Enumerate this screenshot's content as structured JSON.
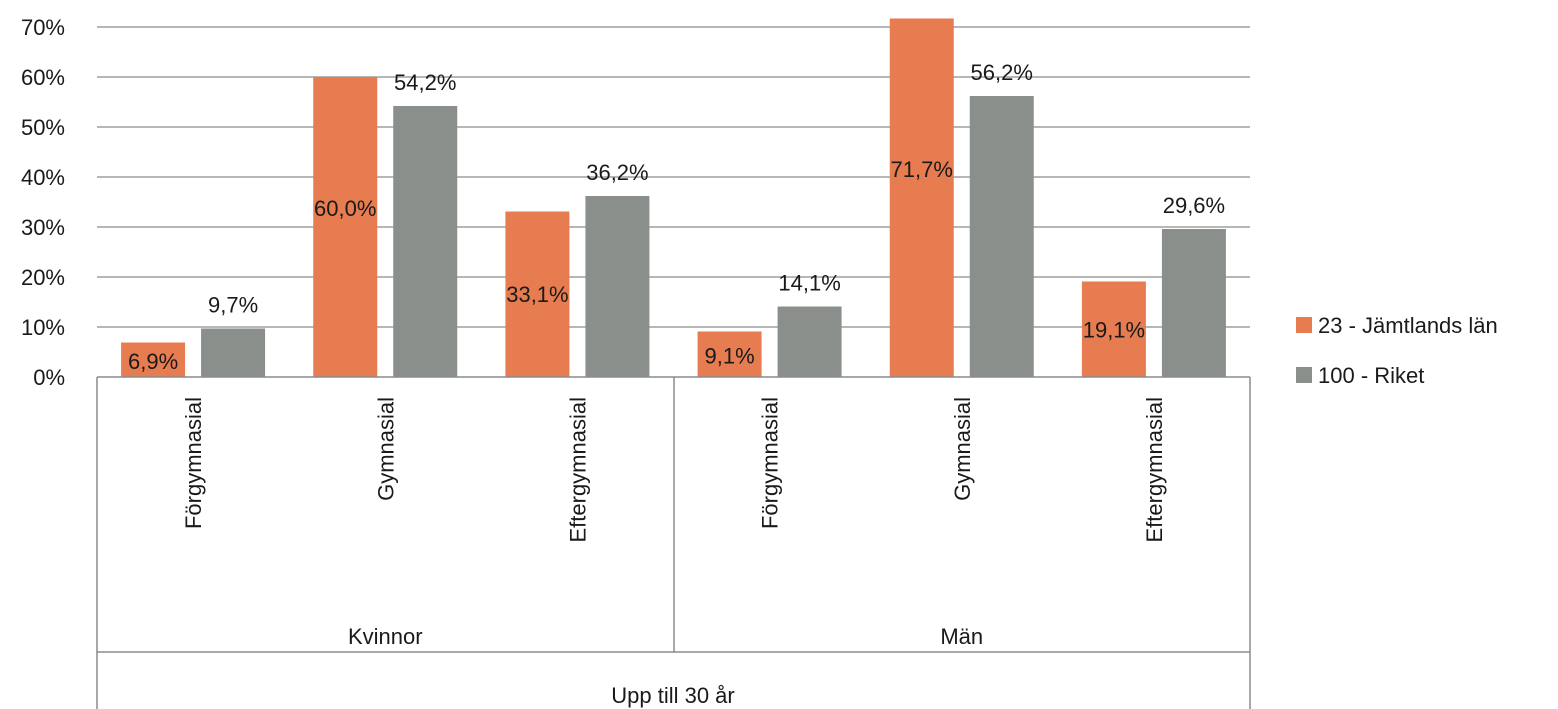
{
  "chart_data": {
    "type": "bar",
    "title": "",
    "xlabel": "",
    "ylabel": "",
    "ylim": [
      0,
      70
    ],
    "y_ticks": [
      "0%",
      "10%",
      "20%",
      "30%",
      "40%",
      "50%",
      "60%",
      "70%"
    ],
    "grid": true,
    "legend_position": "right",
    "outer_group": "Upp till 30 år",
    "groups": [
      "Kvinnor",
      "Män"
    ],
    "categories": [
      "Förgymnasial",
      "Gymnasial",
      "Eftergymnasial",
      "Förgymnasial",
      "Gymnasial",
      "Eftergymnasial"
    ],
    "series": [
      {
        "name": "23 - Jämtlands län",
        "color": "#E67C4F",
        "values": [
          6.9,
          60.0,
          33.1,
          9.1,
          71.7,
          19.1
        ],
        "labels": [
          "6,9%",
          "60,0%",
          "33,1%",
          "9,1%",
          "71,7%",
          "19,1%"
        ]
      },
      {
        "name": "100 - Riket",
        "color": "#8A8F8C",
        "values": [
          9.7,
          54.2,
          36.2,
          14.1,
          56.2,
          29.6
        ],
        "labels": [
          "9,7%",
          "54,2%",
          "36,2%",
          "14,1%",
          "56,2%",
          "29,6%"
        ]
      }
    ]
  }
}
